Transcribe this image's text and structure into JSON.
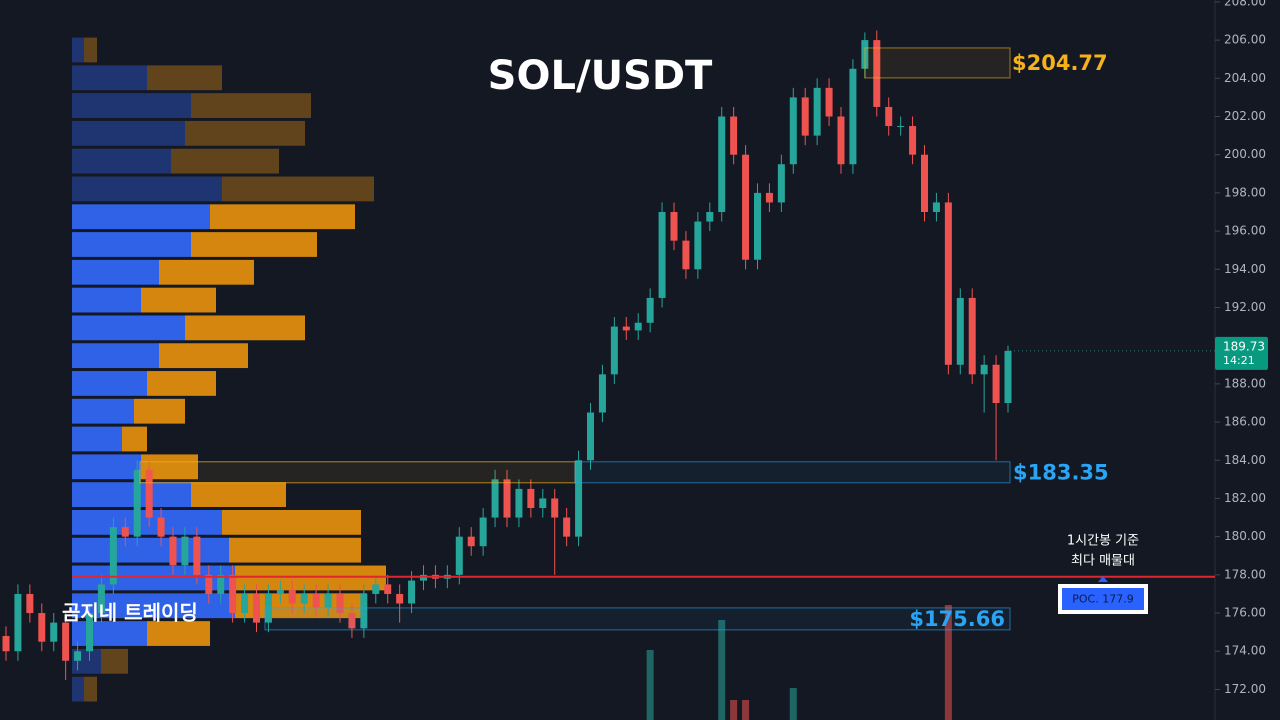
{
  "chart_data": {
    "type": "candlestick",
    "title": "SOL/USDT",
    "watermark": "곰지네 트레이딩",
    "annotation": [
      "1시간봉 기준",
      "최다 매물대"
    ],
    "up_color": "#26a69a",
    "down_color": "#ef5350",
    "open": [
      174.8,
      174,
      177,
      176,
      174.5,
      175.5,
      173.5,
      174,
      176,
      177.5,
      180.5,
      180,
      183.5,
      181,
      180,
      178.5,
      180,
      178,
      177,
      178,
      176,
      177,
      175.5,
      177,
      177.2,
      176.5,
      177,
      176.3,
      177,
      176,
      175.2,
      177,
      177.5,
      177,
      176.5,
      177.7,
      178,
      177.8,
      178,
      180,
      179.5,
      181,
      183,
      181,
      182.5,
      181.5,
      182,
      181,
      180,
      184,
      186.5,
      188.5,
      191,
      190.8,
      191.2,
      192.5,
      197,
      195.5,
      194,
      196.5,
      197,
      202,
      200,
      194.5,
      198,
      197.5,
      199.5,
      203,
      201,
      203.5,
      202,
      199.5,
      204.5,
      206,
      202.5,
      201.5,
      201.5,
      200,
      197,
      197.5,
      189,
      192.5,
      188.5,
      189,
      187
    ],
    "high": [
      175.3,
      177.5,
      177.5,
      176.5,
      176,
      176,
      174.5,
      176.5,
      178,
      181,
      181,
      184,
      184,
      181.5,
      180.5,
      180.5,
      180.5,
      178.5,
      178.5,
      178.5,
      177.5,
      177.5,
      177.5,
      177.7,
      177.7,
      177.5,
      177.5,
      177.5,
      177.5,
      176.5,
      177.5,
      178,
      178,
      177.5,
      178.2,
      178.5,
      178.5,
      178.5,
      180.5,
      180.5,
      181.5,
      183.5,
      183.5,
      183,
      183,
      182.5,
      182.5,
      181.5,
      184.5,
      187,
      189,
      191.5,
      191.5,
      191.7,
      193,
      197.5,
      197.5,
      196,
      197,
      197.5,
      202.5,
      202.5,
      200.5,
      198.5,
      198.5,
      200,
      203.5,
      203.5,
      204,
      204,
      202.5,
      205,
      206.4,
      206.5,
      203,
      202,
      202,
      200.5,
      198,
      198,
      193,
      193,
      189.5,
      189.5,
      190
    ],
    "low": [
      173.5,
      173.5,
      175.5,
      174,
      174,
      172.5,
      173,
      173.5,
      175.5,
      177,
      179.5,
      179.5,
      180.5,
      179.5,
      178,
      178,
      177.5,
      176.5,
      176.5,
      175.5,
      175.5,
      175,
      175,
      176.5,
      176,
      176,
      175.8,
      175.8,
      175.5,
      174.7,
      174.7,
      176.5,
      176.5,
      175.5,
      176,
      177.2,
      177.3,
      177.3,
      177.5,
      179,
      179,
      180.5,
      180.5,
      180.5,
      181,
      181,
      178,
      179.5,
      179.5,
      183.5,
      186,
      188,
      190.3,
      190.3,
      190.7,
      192,
      195,
      193.5,
      193.5,
      196,
      196.5,
      199.5,
      194,
      194,
      197,
      197,
      199,
      200.5,
      200.5,
      201.5,
      199,
      199,
      204,
      202,
      201,
      201,
      199.5,
      196.5,
      196.5,
      188.5,
      188.5,
      188,
      186.5,
      184,
      186.5
    ],
    "close": [
      174,
      177,
      176,
      174.5,
      175.5,
      173.5,
      174,
      176,
      177.5,
      180.5,
      180,
      183.5,
      181,
      180,
      178.5,
      180,
      178,
      177,
      178,
      176,
      177,
      175.5,
      177,
      177.2,
      176.5,
      177,
      176.3,
      177,
      176,
      175.2,
      177,
      177.5,
      177,
      176.5,
      177.7,
      178,
      177.8,
      178,
      180,
      179.5,
      181,
      183,
      181,
      182.5,
      181.5,
      182,
      181,
      180,
      184,
      186.5,
      188.5,
      191,
      190.8,
      191.2,
      192.5,
      197,
      195.5,
      194,
      196.5,
      197,
      202,
      200,
      194.5,
      198,
      197.5,
      199.5,
      203,
      201,
      203.5,
      202,
      199.5,
      204.5,
      206,
      202.5,
      201.5,
      201.5,
      200,
      197,
      197.5,
      189,
      192.5,
      188.5,
      189,
      187,
      189.73
    ],
    "volume": [
      null,
      null,
      null,
      null,
      null,
      null,
      null,
      null,
      null,
      null,
      null,
      null,
      null,
      null,
      null,
      null,
      null,
      null,
      null,
      null,
      null,
      null,
      null,
      null,
      null,
      null,
      null,
      null,
      null,
      null,
      null,
      null,
      null,
      null,
      null,
      null,
      null,
      null,
      null,
      null,
      null,
      null,
      null,
      null,
      null,
      null,
      null,
      null,
      null,
      null,
      null,
      null,
      null,
      null,
      70,
      null,
      null,
      null,
      null,
      null,
      100,
      20,
      20,
      null,
      null,
      null,
      32,
      null,
      null,
      null,
      null,
      null,
      null,
      null,
      null,
      null,
      null,
      null,
      null,
      115,
      null,
      null,
      null,
      null,
      null
    ],
    "ylim": [
      170.4,
      208.1
    ],
    "yticks": [
      {
        "value": 172,
        "label": "172.00"
      },
      {
        "value": 174,
        "label": "174.00"
      },
      {
        "value": 176,
        "label": "176.00"
      },
      {
        "value": 178,
        "label": "178.00"
      },
      {
        "value": 180,
        "label": "180.00"
      },
      {
        "value": 182,
        "label": "182.00"
      },
      {
        "value": 184,
        "label": "184.00"
      },
      {
        "value": 186,
        "label": "186.00"
      },
      {
        "value": 188,
        "label": "188.00"
      },
      {
        "value": 190,
        "label": "190.00"
      },
      {
        "value": 192,
        "label": "192.00"
      },
      {
        "value": 194,
        "label": "194.00"
      },
      {
        "value": 196,
        "label": "196.00"
      },
      {
        "value": 198,
        "label": "198.00"
      },
      {
        "value": 200,
        "label": "200.00"
      },
      {
        "value": 202,
        "label": "202.00"
      },
      {
        "value": 204,
        "label": "204.00"
      },
      {
        "value": 206,
        "label": "206.00"
      },
      {
        "value": 208,
        "label": "208.00"
      }
    ],
    "profile": {
      "top": 206.21,
      "step": 1.455,
      "value_area": [
        6,
        21
      ],
      "buy_color": "#2f62e6",
      "sell_color": "#d4860f",
      "buy": [
        12,
        75,
        119,
        113,
        99,
        150,
        138,
        119,
        87,
        69,
        113,
        87,
        75,
        62,
        50,
        69,
        119,
        150,
        157,
        163,
        163,
        75,
        29,
        12
      ],
      "sell": [
        13,
        75,
        120,
        120,
        108,
        152,
        145,
        126,
        95,
        75,
        120,
        89,
        69,
        51,
        25,
        57,
        95,
        139,
        132,
        151,
        132,
        63,
        27,
        13
      ]
    },
    "zones": [
      {
        "label": "$204.77",
        "top": 205.59,
        "bottom": 204.02,
        "color": "#f5b21b"
      },
      {
        "label": "$183.35",
        "top": 183.92,
        "bottom": 182.82,
        "color": "#2aa4f4"
      },
      {
        "label": "$175.66",
        "top": 176.27,
        "bottom": 175.12,
        "color": "#2aa4f4"
      }
    ],
    "poc": 177.9,
    "poc_label": "POC. 177.9",
    "last_price": 189.73,
    "countdown": "14:21"
  }
}
